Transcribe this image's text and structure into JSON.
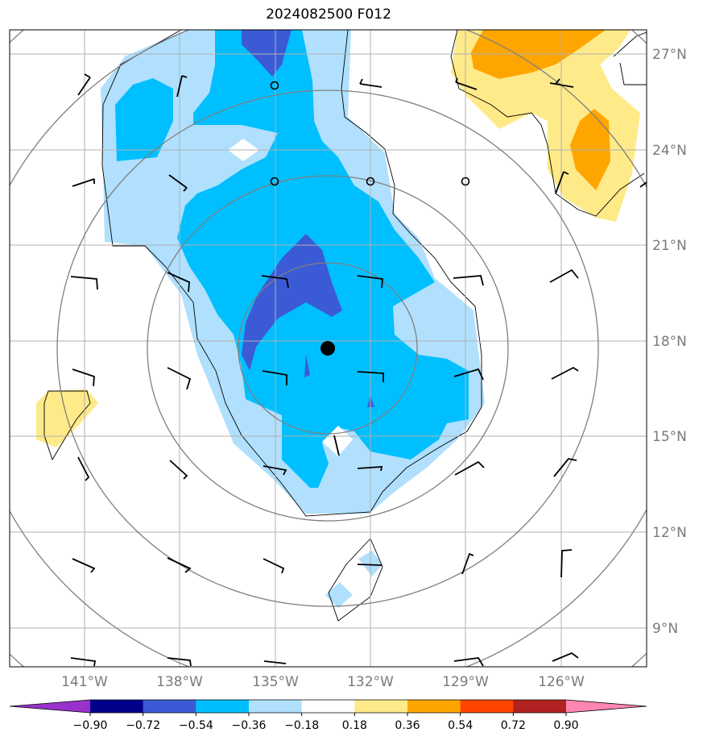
{
  "title": "2024082500 F012",
  "map": {
    "lat_labels": [
      "27°N",
      "24°N",
      "21°N",
      "18°N",
      "15°N",
      "12°N",
      "9°N"
    ],
    "lon_labels": [
      "141°W",
      "138°W",
      "135°W",
      "132°W",
      "129°W",
      "126°W"
    ],
    "storm_center": {
      "lat": 17.8,
      "lon": -133.6
    },
    "range_rings": 5
  },
  "colorbar": {
    "ticks": [
      "−0.90",
      "−0.72",
      "−0.54",
      "−0.36",
      "−0.18",
      "0.18",
      "0.36",
      "0.54",
      "0.72",
      "0.90"
    ],
    "colors": [
      "#9932cc",
      "#00008b",
      "#3b5bd6",
      "#00bfff",
      "#b0e0fd",
      "#ffffff",
      "#ffea8a",
      "#ffa500",
      "#ff4500",
      "#b22222",
      "#ff85b3"
    ],
    "color_names": {
      "level_dark_blue": "#3b5bd6",
      "level_cyan": "#00bfff",
      "level_light_blue": "#b0e0fd",
      "level_light_yellow": "#ffea8a",
      "level_orange": "#ffa500"
    }
  }
}
